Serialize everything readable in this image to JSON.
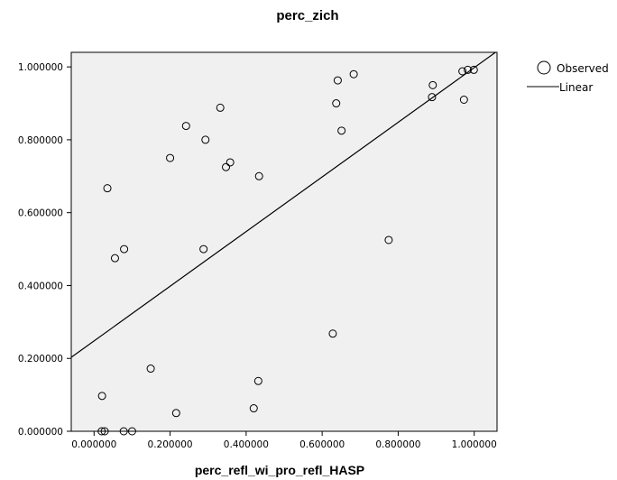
{
  "chart_data": {
    "type": "scatter",
    "title": "perc_zich",
    "xlabel": "perc_refl_wi_pro_refl_HASP",
    "ylabel": "",
    "xlim": [
      -0.06,
      1.06
    ],
    "ylim": [
      0.0,
      1.04
    ],
    "x_ticks": [
      0.0,
      0.2,
      0.4,
      0.6,
      0.8,
      1.0
    ],
    "x_tick_labels": [
      "0.000000",
      "0.200000",
      "0.400000",
      "0.600000",
      "0.800000",
      "1.000000"
    ],
    "y_ticks": [
      0.0,
      0.2,
      0.4,
      0.6,
      0.8,
      1.0
    ],
    "y_tick_labels": [
      "0.000000",
      "0.200000",
      "0.400000",
      "0.600000",
      "0.800000",
      "1.000000"
    ],
    "grid": false,
    "plot_background": "#f0f0f0",
    "legend_position": "top-right outside",
    "series": [
      {
        "name": "Observed",
        "marker": "open-circle",
        "points": [
          [
            0.021,
            0.097
          ],
          [
            0.02,
            0.0
          ],
          [
            0.028,
            0.0
          ],
          [
            0.078,
            0.0
          ],
          [
            0.1,
            0.0
          ],
          [
            0.035,
            0.667
          ],
          [
            0.055,
            0.475
          ],
          [
            0.079,
            0.5
          ],
          [
            0.149,
            0.172
          ],
          [
            0.2,
            0.75
          ],
          [
            0.216,
            0.05
          ],
          [
            0.242,
            0.838
          ],
          [
            0.288,
            0.5
          ],
          [
            0.293,
            0.8
          ],
          [
            0.332,
            0.888
          ],
          [
            0.347,
            0.725
          ],
          [
            0.358,
            0.738
          ],
          [
            0.42,
            0.063
          ],
          [
            0.432,
            0.138
          ],
          [
            0.434,
            0.7
          ],
          [
            0.628,
            0.268
          ],
          [
            0.637,
            0.9
          ],
          [
            0.641,
            0.963
          ],
          [
            0.651,
            0.825
          ],
          [
            0.683,
            0.98
          ],
          [
            0.775,
            0.525
          ],
          [
            0.889,
            0.917
          ],
          [
            0.891,
            0.95
          ],
          [
            0.969,
            0.988
          ],
          [
            0.973,
            0.91
          ],
          [
            0.983,
            0.992
          ],
          [
            0.999,
            0.992
          ]
        ]
      },
      {
        "name": "Linear",
        "marker": "line",
        "line": {
          "intercept": 0.248,
          "slope": 0.75
        }
      }
    ]
  }
}
